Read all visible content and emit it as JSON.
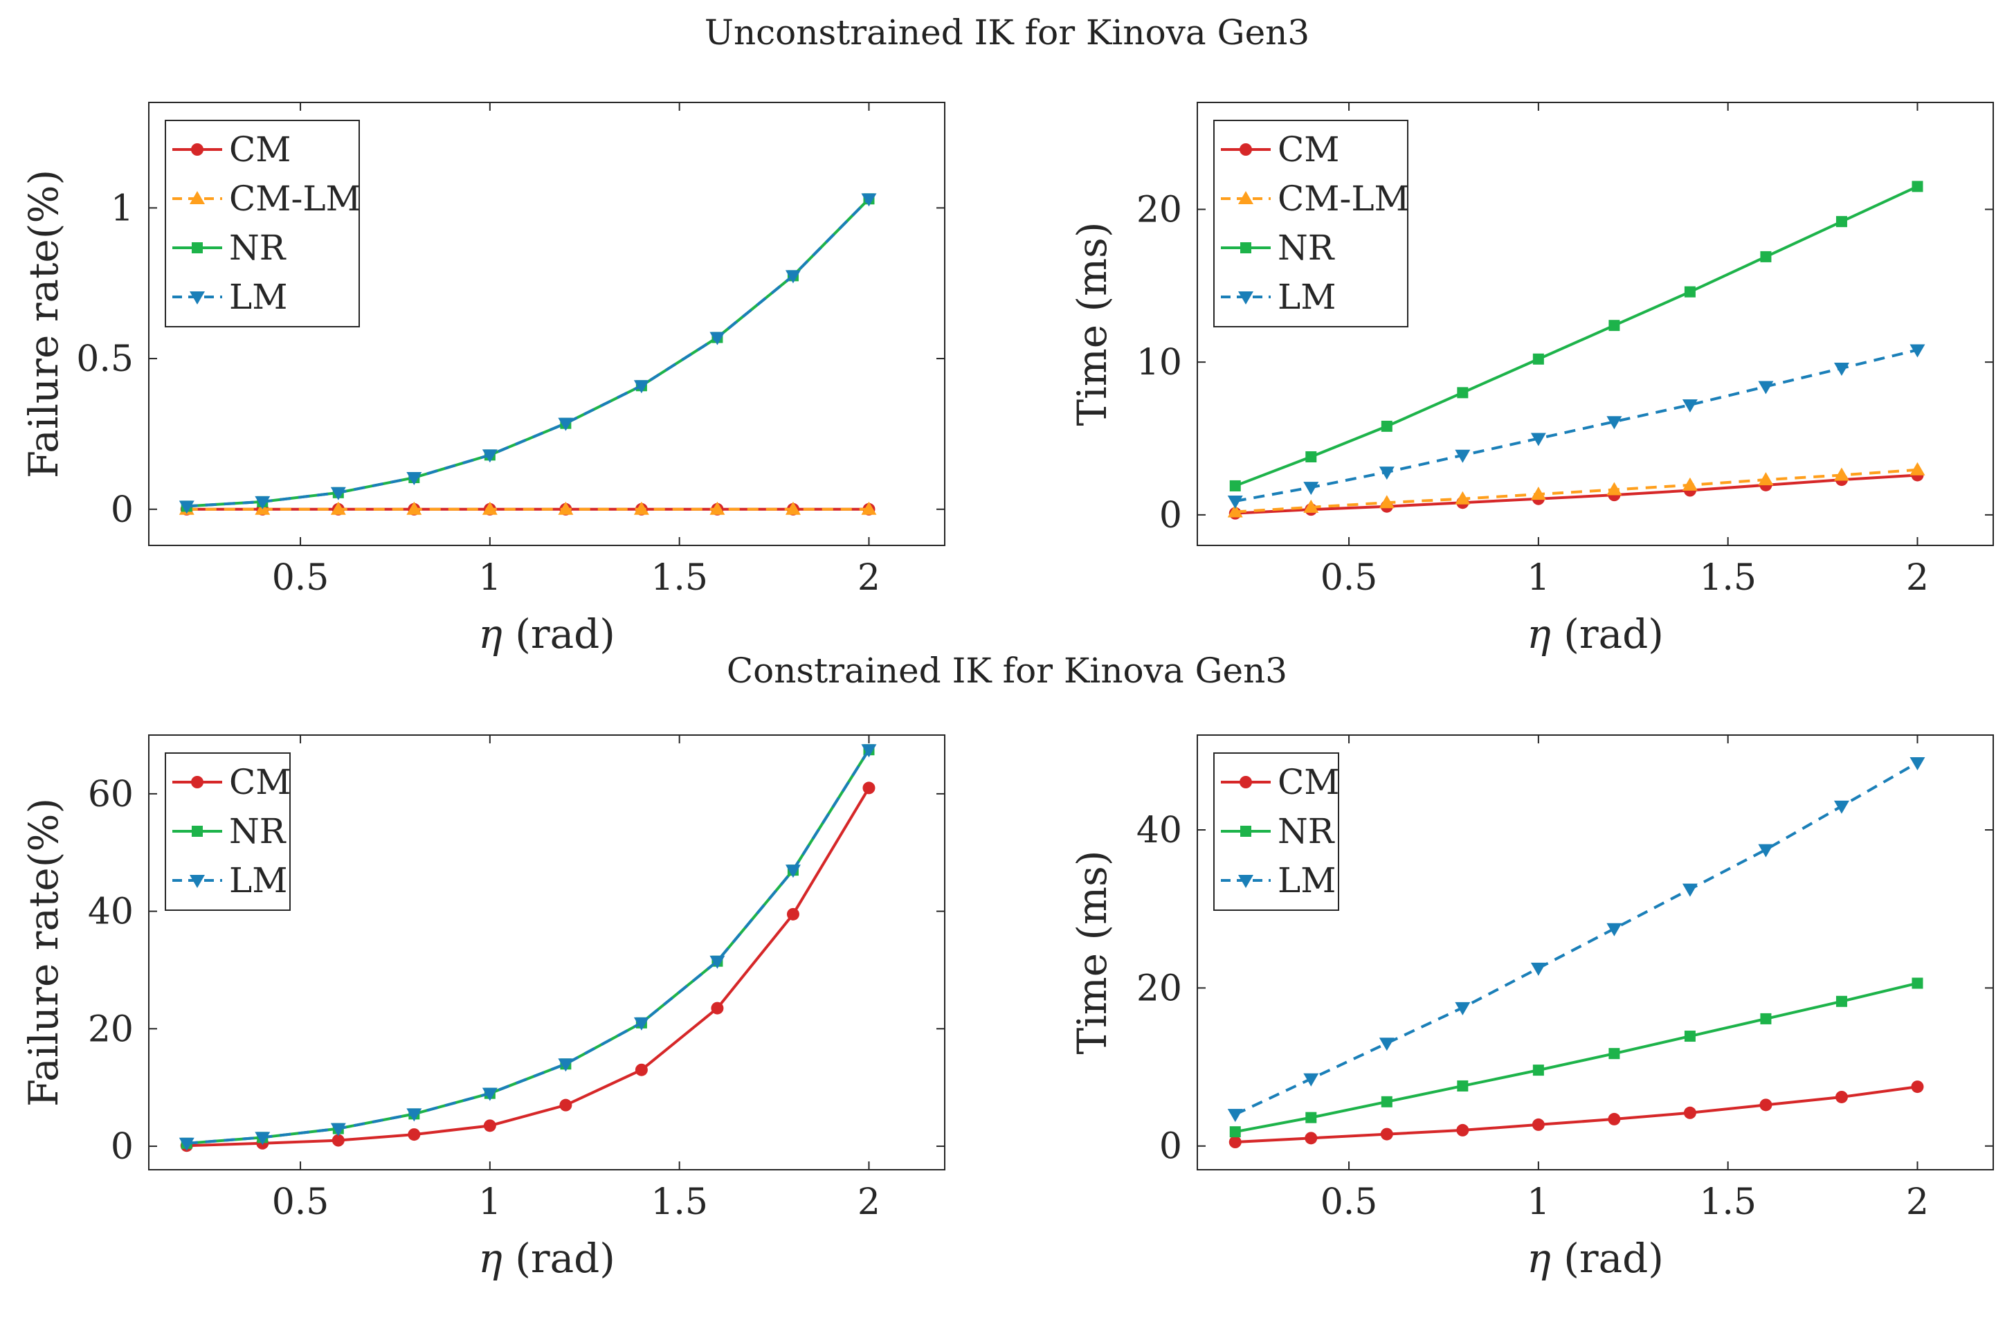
{
  "figure": {
    "title_unconstrained": "Unconstrained IK for Kinova Gen3",
    "title_constrained": "Constrained IK for Kinova Gen3"
  },
  "colors": {
    "CM": "#d62728",
    "CM-LM": "#ff9f1c",
    "NR": "#1db34a",
    "LM": "#1a7fb8",
    "axis": "#262626"
  },
  "chart_data": [
    {
      "id": "uncon-failure",
      "type": "line",
      "title": "Unconstrained IK for Kinova Gen3",
      "xlabel_sym": "η",
      "xlabel_unit": " (rad)",
      "ylabel": "Failure rate(%)",
      "xlim": [
        0.1,
        2.2
      ],
      "ylim": [
        -0.12,
        1.35
      ],
      "xticks": [
        0.5,
        1,
        1.5,
        2
      ],
      "xtick_labels": [
        "0.5",
        "1",
        "1.5",
        "2"
      ],
      "yticks": [
        0,
        0.5,
        1
      ],
      "ytick_labels": [
        "0",
        "0.5",
        "1"
      ],
      "legend_position": "top-left",
      "x": [
        0.2,
        0.4,
        0.6,
        0.8,
        1.0,
        1.2,
        1.4,
        1.6,
        1.8,
        2.0
      ],
      "series": [
        {
          "name": "CM",
          "color_key": "CM",
          "dash": false,
          "marker": "circle",
          "values": [
            0,
            0,
            0,
            0,
            0,
            0,
            0,
            0,
            0,
            0
          ]
        },
        {
          "name": "CM-LM",
          "color_key": "CM-LM",
          "dash": true,
          "marker": "triangle-up",
          "values": [
            0,
            0,
            0,
            0,
            0,
            0,
            0,
            0,
            0,
            0
          ]
        },
        {
          "name": "NR",
          "color_key": "NR",
          "dash": false,
          "marker": "square",
          "values": [
            0.01,
            0.025,
            0.055,
            0.105,
            0.18,
            0.285,
            0.41,
            0.57,
            0.775,
            1.03
          ]
        },
        {
          "name": "LM",
          "color_key": "LM",
          "dash": true,
          "marker": "triangle-down",
          "values": [
            0.01,
            0.025,
            0.055,
            0.105,
            0.18,
            0.285,
            0.41,
            0.57,
            0.775,
            1.03
          ]
        }
      ]
    },
    {
      "id": "uncon-time",
      "type": "line",
      "title": "Unconstrained IK for Kinova Gen3",
      "xlabel_sym": "η",
      "xlabel_unit": " (rad)",
      "ylabel": "Time (ms)",
      "xlim": [
        0.1,
        2.2
      ],
      "ylim": [
        -2,
        27
      ],
      "xticks": [
        0.5,
        1,
        1.5,
        2
      ],
      "xtick_labels": [
        "0.5",
        "1",
        "1.5",
        "2"
      ],
      "yticks": [
        0,
        10,
        20
      ],
      "ytick_labels": [
        "0",
        "10",
        "20"
      ],
      "legend_position": "top-left",
      "x": [
        0.2,
        0.4,
        0.6,
        0.8,
        1.0,
        1.2,
        1.4,
        1.6,
        1.8,
        2.0
      ],
      "series": [
        {
          "name": "CM",
          "color_key": "CM",
          "dash": false,
          "marker": "circle",
          "values": [
            0.1,
            0.35,
            0.55,
            0.8,
            1.05,
            1.3,
            1.6,
            1.95,
            2.3,
            2.6
          ]
        },
        {
          "name": "CM-LM",
          "color_key": "CM-LM",
          "dash": true,
          "marker": "triangle-up",
          "values": [
            0.2,
            0.5,
            0.8,
            1.05,
            1.35,
            1.65,
            1.95,
            2.3,
            2.6,
            2.95
          ]
        },
        {
          "name": "NR",
          "color_key": "NR",
          "dash": false,
          "marker": "square",
          "values": [
            1.9,
            3.8,
            5.8,
            8.0,
            10.2,
            12.4,
            14.6,
            16.9,
            19.2,
            21.5
          ]
        },
        {
          "name": "LM",
          "color_key": "LM",
          "dash": true,
          "marker": "triangle-down",
          "values": [
            0.9,
            1.8,
            2.8,
            3.9,
            5.0,
            6.1,
            7.2,
            8.4,
            9.6,
            10.8
          ]
        }
      ]
    },
    {
      "id": "con-failure",
      "type": "line",
      "title": "Constrained IK for Kinova Gen3",
      "xlabel_sym": "η",
      "xlabel_unit": " (rad)",
      "ylabel": "Failure rate(%)",
      "xlim": [
        0.1,
        2.2
      ],
      "ylim": [
        -4,
        70
      ],
      "xticks": [
        0.5,
        1,
        1.5,
        2
      ],
      "xtick_labels": [
        "0.5",
        "1",
        "1.5",
        "2"
      ],
      "yticks": [
        0,
        20,
        40,
        60
      ],
      "ytick_labels": [
        "0",
        "20",
        "40",
        "60"
      ],
      "legend_position": "top-left",
      "x": [
        0.2,
        0.4,
        0.6,
        0.8,
        1.0,
        1.2,
        1.4,
        1.6,
        1.8,
        2.0
      ],
      "series": [
        {
          "name": "CM",
          "color_key": "CM",
          "dash": false,
          "marker": "circle",
          "values": [
            0.1,
            0.5,
            1.0,
            2.0,
            3.5,
            7.0,
            13.0,
            23.5,
            39.5,
            61.0
          ]
        },
        {
          "name": "NR",
          "color_key": "NR",
          "dash": false,
          "marker": "square",
          "values": [
            0.5,
            1.5,
            3.0,
            5.5,
            9.0,
            14.0,
            21.0,
            31.5,
            47.0,
            67.5
          ]
        },
        {
          "name": "LM",
          "color_key": "LM",
          "dash": true,
          "marker": "triangle-down",
          "values": [
            0.5,
            1.5,
            3.0,
            5.5,
            9.0,
            14.0,
            21.0,
            31.5,
            47.0,
            67.5
          ]
        }
      ]
    },
    {
      "id": "con-time",
      "type": "line",
      "title": "Constrained IK for Kinova Gen3",
      "xlabel_sym": "η",
      "xlabel_unit": " (rad)",
      "ylabel": "Time (ms)",
      "xlim": [
        0.1,
        2.2
      ],
      "ylim": [
        -3,
        52
      ],
      "xticks": [
        0.5,
        1,
        1.5,
        2
      ],
      "xtick_labels": [
        "0.5",
        "1",
        "1.5",
        "2"
      ],
      "yticks": [
        0,
        20,
        40
      ],
      "ytick_labels": [
        "0",
        "20",
        "40"
      ],
      "legend_position": "top-left",
      "x": [
        0.2,
        0.4,
        0.6,
        0.8,
        1.0,
        1.2,
        1.4,
        1.6,
        1.8,
        2.0
      ],
      "series": [
        {
          "name": "CM",
          "color_key": "CM",
          "dash": false,
          "marker": "circle",
          "values": [
            0.5,
            1.0,
            1.5,
            2.0,
            2.7,
            3.4,
            4.2,
            5.2,
            6.2,
            7.5
          ]
        },
        {
          "name": "NR",
          "color_key": "NR",
          "dash": false,
          "marker": "square",
          "values": [
            1.8,
            3.6,
            5.6,
            7.6,
            9.6,
            11.7,
            13.9,
            16.1,
            18.3,
            20.6
          ]
        },
        {
          "name": "LM",
          "color_key": "LM",
          "dash": true,
          "marker": "triangle-down",
          "values": [
            4.0,
            8.5,
            13.0,
            17.5,
            22.5,
            27.5,
            32.5,
            37.5,
            43.0,
            48.5
          ]
        }
      ]
    }
  ]
}
